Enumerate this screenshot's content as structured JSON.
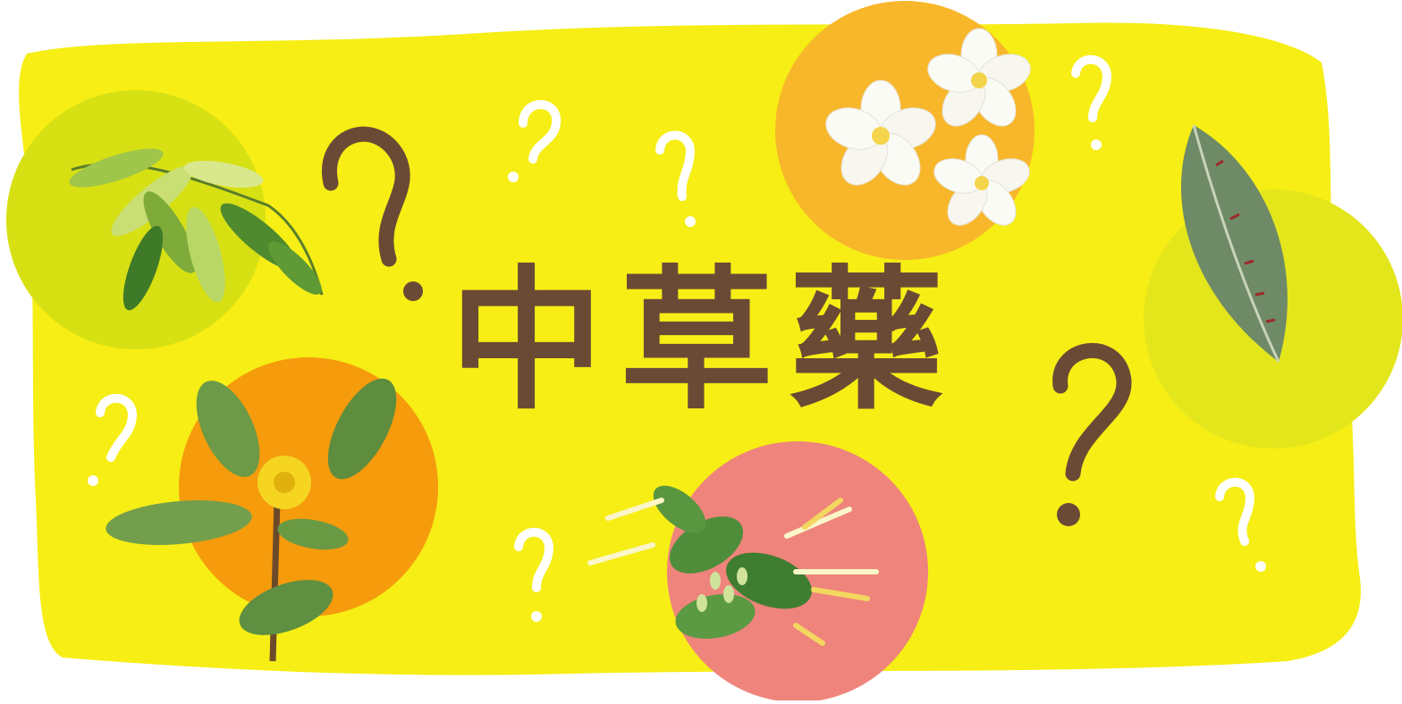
{
  "title": "中草藥",
  "colors": {
    "background_blob": "#f6ee15",
    "circle_lime": "#d7e013",
    "circle_orange_light": "#f8b72a",
    "circle_orange": "#f59b0c",
    "circle_pink": "#ef847c",
    "circle_lime_right": "#e4e61c",
    "question_mark_brown": "#6b4a35",
    "question_mark_white": "#ffffff"
  },
  "icons": [
    "cinnamon-leaf-icon",
    "frangipani-flower-icon",
    "thorny-leaf-icon",
    "purslane-plant-icon",
    "honeysuckle-flower-icon",
    "question-mark-icon"
  ]
}
